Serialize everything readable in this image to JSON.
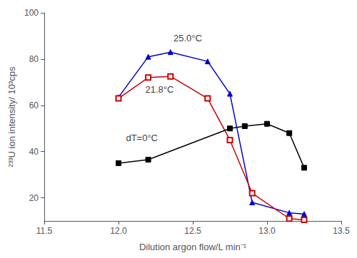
{
  "chart_data": {
    "type": "line",
    "x_label": "Dilution argon flow/L min⁻¹",
    "y_label": "²³³U ion intensity/ 10³cps",
    "xlim": [
      11.5,
      13.5
    ],
    "ylim": [
      10,
      100
    ],
    "xticks": [
      11.5,
      {
        "value": 12.0,
        "label": "12.0"
      },
      12.5,
      {
        "value": 13.0,
        "label": "13.0"
      },
      13.5
    ],
    "yticks": [
      20,
      40,
      60,
      80,
      100
    ],
    "grid": false,
    "series": [
      {
        "color": "#0000cc",
        "marker": "triangle",
        "x": [
          12.0,
          12.2,
          12.35,
          12.6,
          12.75,
          12.9,
          13.15,
          13.25
        ],
        "values": [
          63.5,
          81.0,
          83.0,
          79.0,
          65.0,
          18.0,
          13.5,
          13.0
        ]
      },
      {
        "color": "#cc0000",
        "marker": "open_square",
        "x": [
          12.0,
          12.2,
          12.35,
          12.6,
          12.75,
          12.9,
          13.15,
          13.25
        ],
        "values": [
          63.0,
          72.0,
          72.5,
          63.0,
          45.0,
          22.0,
          11.0,
          10.5
        ]
      },
      {
        "color": "#000000",
        "marker": "square",
        "x": [
          12.0,
          12.2,
          12.75,
          12.85,
          13.0,
          13.15,
          13.25
        ],
        "values": [
          35.0,
          36.5,
          50.0,
          51.0,
          52.0,
          48.0,
          33.0
        ]
      }
    ],
    "annotations": [
      {
        "text": "25.0°C",
        "x": 12.37,
        "y": 89
      },
      {
        "text": "21.8°C",
        "x": 12.18,
        "y": 67
      },
      {
        "text": "dT=0°C",
        "x": 12.05,
        "y": 46
      }
    ]
  }
}
